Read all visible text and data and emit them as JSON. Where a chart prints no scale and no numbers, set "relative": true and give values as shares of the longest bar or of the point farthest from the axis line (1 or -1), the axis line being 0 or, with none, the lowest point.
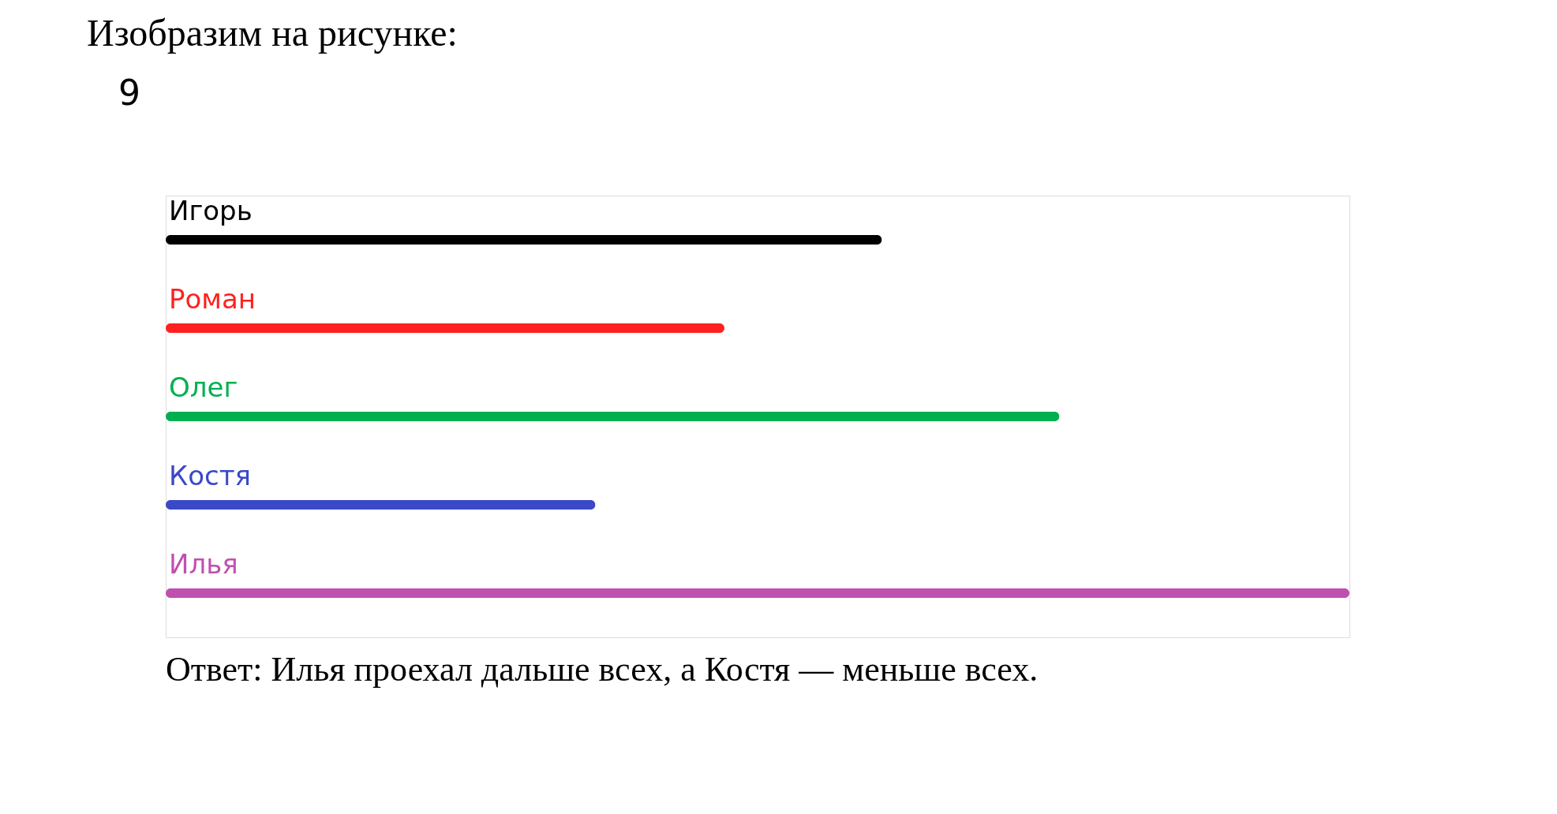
{
  "chart_data": {
    "type": "bar",
    "orientation": "horizontal",
    "relative": true,
    "title": "Изобразим на рисунке:",
    "categories": [
      "Игорь",
      "Роман",
      "Олег",
      "Костя",
      "Илья"
    ],
    "values": [
      0.605,
      0.472,
      0.755,
      0.363,
      1
    ],
    "colors": [
      "#000000",
      "#ff2020",
      "#00b050",
      "#3b48c8",
      "#c050b0"
    ],
    "annotations": [
      "9",
      "Ответ: Илья проехал дальше всех, а Костя — меньше всех."
    ]
  }
}
